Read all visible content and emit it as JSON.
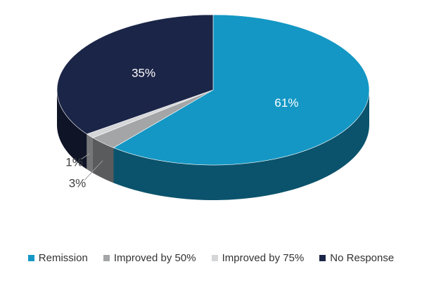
{
  "chart_data": {
    "type": "pie",
    "style": "3d",
    "title": "",
    "slices": [
      {
        "name": "Remission",
        "value": 61,
        "label": "61%",
        "color": "#1497c4"
      },
      {
        "name": "Improved by 50%",
        "value": 3,
        "label": "3%",
        "color": "#a3a5a7"
      },
      {
        "name": "Improved by 75%",
        "value": 1,
        "label": "1%",
        "color": "#d4d6d8"
      },
      {
        "name": "No Response",
        "value": 35,
        "label": "35%",
        "color": "#1b2547"
      }
    ],
    "legend_position": "bottom"
  }
}
